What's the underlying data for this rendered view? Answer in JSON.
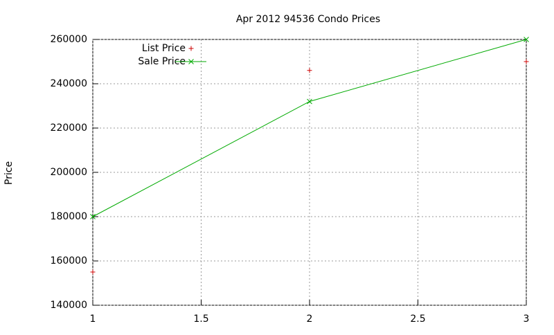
{
  "chart_data": {
    "type": "line",
    "title": "Apr 2012 94536 Condo Prices",
    "y_label": "Price",
    "x": [
      1,
      2,
      3
    ],
    "series": [
      {
        "name": "List Price",
        "color": "#cc0000",
        "marker": "+",
        "line": false,
        "values": [
          155000,
          246000,
          250000
        ]
      },
      {
        "name": "Sale Price",
        "color": "#00aa00",
        "marker": "x",
        "line": true,
        "values": [
          180000,
          232000,
          260000
        ]
      }
    ],
    "xlim": [
      1,
      3
    ],
    "xticks": [
      1,
      1.5,
      2,
      2.5,
      3
    ],
    "ylim": [
      140000,
      260000
    ],
    "yticks": [
      140000,
      160000,
      180000,
      200000,
      220000,
      240000,
      260000
    ],
    "grid": true,
    "legend": "top-left"
  }
}
